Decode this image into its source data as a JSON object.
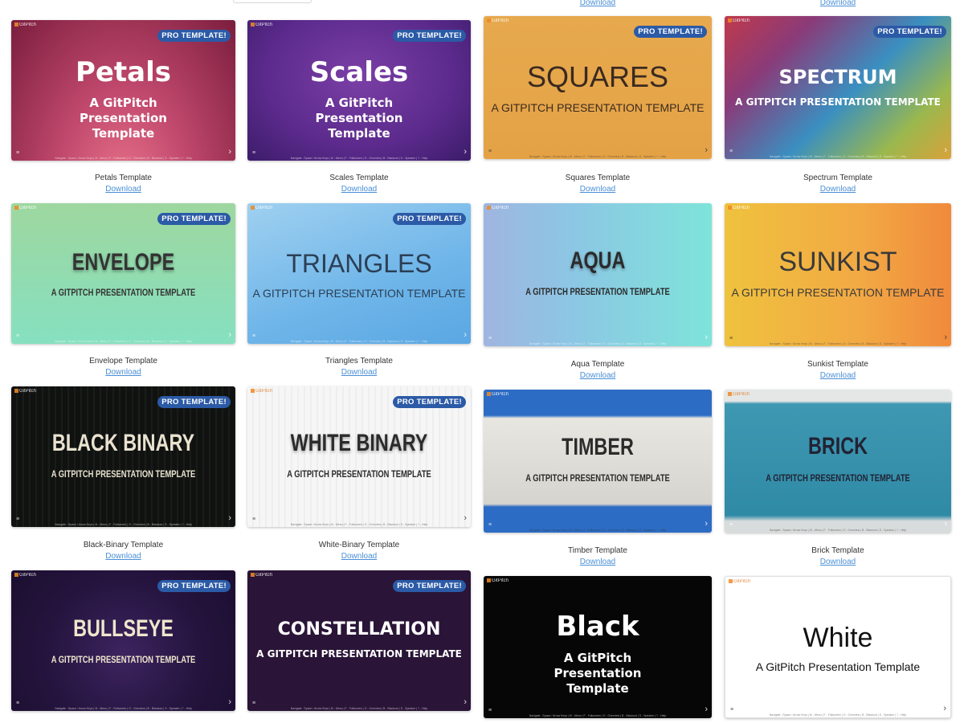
{
  "top_partial": {
    "download_label": "Download"
  },
  "slide_common": {
    "brand": "GitPitch",
    "pro_badge": "PRO TEMPLATE!",
    "menu_glyph": "≡",
    "next_glyph": "›",
    "navbar": "Navigate : Space / Arrow Keys | M - Menu | F - Fullscreen | O - Overview | B - Blackout | S - Speaker | ? - Help"
  },
  "templates": [
    {
      "key": "petals",
      "title": "Petals",
      "subtitle": "A GitPitch Presentation Template",
      "caption": "Petals Template",
      "download": "Download",
      "pro": true
    },
    {
      "key": "scales",
      "title": "Scales",
      "subtitle": "A GitPitch Presentation Template",
      "caption": "Scales Template",
      "download": "Download",
      "pro": true
    },
    {
      "key": "squares",
      "title": "SQUARES",
      "subtitle": "A GITPITCH PRESENTATION TEMPLATE",
      "caption": "Squares Template",
      "download": "Download",
      "pro": true
    },
    {
      "key": "spectrum",
      "title": "SPECTRUM",
      "subtitle": "A GITPITCH PRESENTATION TEMPLATE",
      "caption": "Spectrum Template",
      "download": "Download",
      "pro": true
    },
    {
      "key": "envelope",
      "title": "ENVELOPE",
      "subtitle": "A GITPITCH PRESENTATION TEMPLATE",
      "caption": "Envelope Template",
      "download": "Download",
      "pro": true
    },
    {
      "key": "triangles",
      "title": "TRIANGLES",
      "subtitle": "A GITPITCH PRESENTATION TEMPLATE",
      "caption": "Triangles Template",
      "download": "Download",
      "pro": true
    },
    {
      "key": "aqua",
      "title": "AQUA",
      "subtitle": "A GITPITCH PRESENTATION TEMPLATE",
      "caption": "Aqua Template",
      "download": "Download",
      "pro": false
    },
    {
      "key": "sunkist",
      "title": "SUNKIST",
      "subtitle": "A GITPITCH PRESENTATION TEMPLATE",
      "caption": "Sunkist Template",
      "download": "Download",
      "pro": false
    },
    {
      "key": "blackbinary",
      "title": "BLACK BINARY",
      "subtitle": "A GITPITCH PRESENTATION TEMPLATE",
      "caption": "Black-Binary Template",
      "download": "Download",
      "pro": true
    },
    {
      "key": "whitebinary",
      "title": "WHITE BINARY",
      "subtitle": "A GITPITCH PRESENTATION TEMPLATE",
      "caption": "White-Binary Template",
      "download": "Download",
      "pro": true
    },
    {
      "key": "timber",
      "title": "TIMBER",
      "subtitle": "A GITPITCH PRESENTATION TEMPLATE",
      "caption": "Timber Template",
      "download": "Download",
      "pro": false
    },
    {
      "key": "brick",
      "title": "BRICK",
      "subtitle": "A GITPITCH PRESENTATION TEMPLATE",
      "caption": "Brick Template",
      "download": "Download",
      "pro": false
    },
    {
      "key": "bullseye",
      "title": "BULLSEYE",
      "subtitle": "A GITPITCH PRESENTATION TEMPLATE",
      "caption": "",
      "download": "",
      "pro": true
    },
    {
      "key": "constellation",
      "title": "CONSTELLATION",
      "subtitle": "A GITPITCH PRESENTATION TEMPLATE",
      "caption": "",
      "download": "",
      "pro": true
    },
    {
      "key": "black",
      "title": "Black",
      "subtitle": "A GitPitch Presentation Template",
      "caption": "",
      "download": "",
      "pro": false
    },
    {
      "key": "white",
      "title": "White",
      "subtitle": "A GitPitch Presentation Template",
      "caption": "",
      "download": "",
      "pro": false
    }
  ]
}
